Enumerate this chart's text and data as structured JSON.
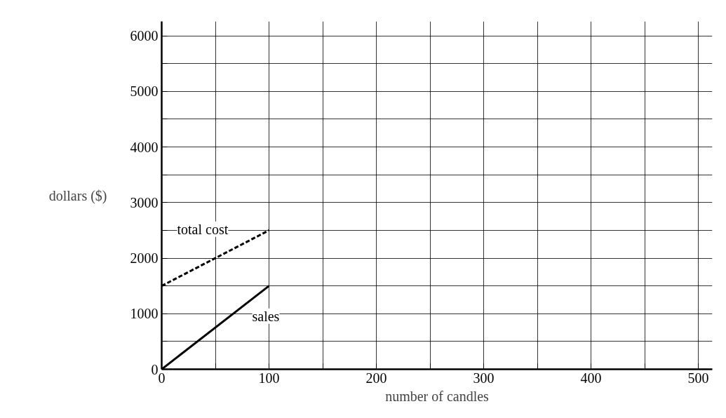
{
  "chart_data": {
    "type": "line",
    "xlabel": "number of candles",
    "ylabel": "dollars ($)",
    "xlim": [
      0,
      513
    ],
    "ylim": [
      0,
      6260
    ],
    "xticks": [
      0,
      {
        "value": 50,
        "label": null
      },
      100,
      {
        "value": 150,
        "label": null
      },
      200,
      {
        "value": 250,
        "label": null
      },
      300,
      {
        "value": 350,
        "label": null
      },
      400,
      {
        "value": 450,
        "label": null
      },
      500
    ],
    "yticks": [
      0,
      {
        "value": 500,
        "label": null
      },
      1000,
      {
        "value": 1500,
        "label": null
      },
      2000,
      {
        "value": 2500,
        "label": null
      },
      3000,
      {
        "value": 3500,
        "label": null
      },
      4000,
      {
        "value": 4500,
        "label": null
      },
      5000,
      {
        "value": 5500,
        "label": null
      },
      6000
    ],
    "grid": true,
    "legend": false,
    "x": [
      0,
      100
    ],
    "series": [
      {
        "name": "total cost",
        "color": "#000000",
        "line_style": "dashed",
        "values": [
          1500,
          2500
        ]
      },
      {
        "name": "sales",
        "color": "#000000",
        "line_style": "solid",
        "values": [
          0,
          1500
        ]
      }
    ]
  }
}
